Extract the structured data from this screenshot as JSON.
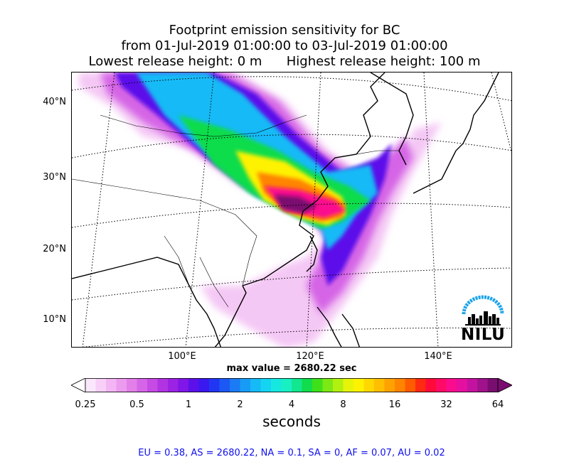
{
  "title": {
    "line1": "Footprint emission sensitivity for BC",
    "line2": "from 01-Jul-2019 01:00:00 to 03-Jul-2019 01:00:00",
    "line3_left": "Lowest release height: 0 m",
    "line3_right": "Highest release height: 100 m"
  },
  "map": {
    "lat_labels": [
      "40°N",
      "30°N",
      "20°N",
      "10°N"
    ],
    "lon_labels": [
      "100°E",
      "120°E",
      "140°E"
    ],
    "logo_text": "NILU"
  },
  "max_value": "max value = 2680.22 sec",
  "colorbar": {
    "tick_labels": [
      "0.25",
      "0.5",
      "1",
      "2",
      "4",
      "8",
      "16",
      "32",
      "64"
    ],
    "unit": "seconds",
    "colors": [
      "#fbe7fb",
      "#f7cff7",
      "#f3b5f3",
      "#ec9bee",
      "#e27fe9",
      "#d565e6",
      "#c64ae4",
      "#b233e2",
      "#9c22e4",
      "#8016e8",
      "#5c10ea",
      "#3a18f0",
      "#2136f2",
      "#1c58f4",
      "#1a7bf5",
      "#189bf6",
      "#16baf6",
      "#14d4f2",
      "#16e8e0",
      "#18f0c4",
      "#12e68e",
      "#10dc4c",
      "#3ee01a",
      "#7ce816",
      "#b2f010",
      "#e6f40a",
      "#fff200",
      "#ffd800",
      "#ffbe00",
      "#ffa200",
      "#ff8400",
      "#ff5c00",
      "#ff2a12",
      "#ff0a3a",
      "#ff0a66",
      "#fa0c8e",
      "#e610a0",
      "#c412a0",
      "#a0128c",
      "#7a0e70"
    ]
  },
  "regions": "EU = 0.38,  AS = 2680.22,  NA = 0.1,  SA = 0,  AF = 0.07,  AU = 0.02"
}
